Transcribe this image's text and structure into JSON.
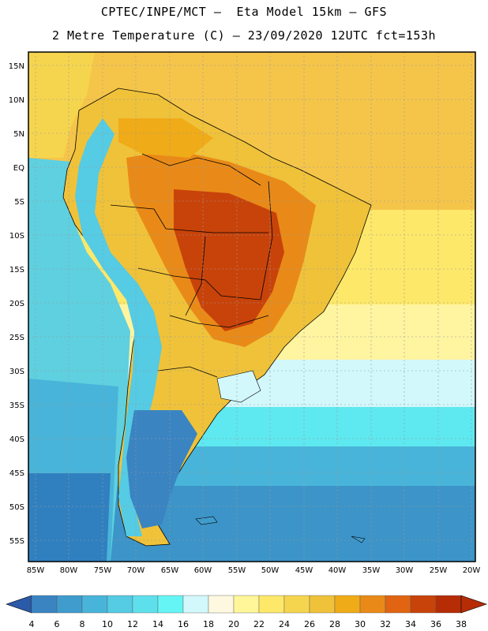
{
  "header": {
    "line1": "CPTEC/INPE/MCT –  Eta Model 15km – GFS",
    "line2": "2 Metre Temperature (C) – 23/09/2020 12UTC fct=153h"
  },
  "map": {
    "lat_labels": [
      "15N",
      "10N",
      "5N",
      "EQ",
      "5S",
      "10S",
      "15S",
      "20S",
      "25S",
      "30S",
      "35S",
      "40S",
      "45S",
      "50S",
      "55S"
    ],
    "lon_labels": [
      "85W",
      "80W",
      "75W",
      "70W",
      "65W",
      "60W",
      "55W",
      "50W",
      "45W",
      "40W",
      "35W",
      "30W",
      "25W",
      "20W"
    ],
    "ocean_colors": {
      "tropical_atlantic": "#f5c54a",
      "south_atlantic_warm": "#fff4a0",
      "mid_atlantic": "#5ee8f0",
      "south_atlantic_cold": "#3c94c8",
      "pacific_warm": "#5ed0e0",
      "pacific_cold": "#3080c0"
    }
  },
  "colorbar": {
    "values": [
      "4",
      "6",
      "8",
      "10",
      "12",
      "14",
      "16",
      "18",
      "20",
      "22",
      "24",
      "26",
      "28",
      "30",
      "32",
      "34",
      "36",
      "38"
    ],
    "colors": [
      "#2f6fb3",
      "#3a84c2",
      "#3f9ccd",
      "#49b4d9",
      "#55cbe4",
      "#5ee0ec",
      "#66f5f5",
      "#d2f8fb",
      "#fff8e0",
      "#fff69a",
      "#fde86a",
      "#f6d54e",
      "#efc23a",
      "#f0ab18",
      "#e98a18",
      "#e06412",
      "#c8430a",
      "#b52c05"
    ],
    "left_arrow_color": "#2a5aa8",
    "right_arrow_color": "#b52c05"
  }
}
